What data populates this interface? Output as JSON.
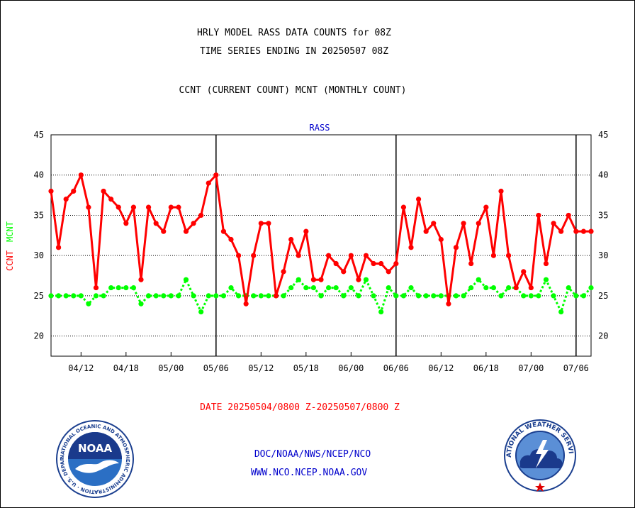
{
  "header": {
    "title_line1": "HRLY MODEL RASS DATA COUNTS for 08Z",
    "title_line2": "TIME SERIES ENDING IN 20250507 08Z",
    "subtitle": "CCNT (CURRENT COUNT) MCNT (MONTHLY COUNT)"
  },
  "chart_data": {
    "type": "line",
    "title": "RASS",
    "ylabel": "CCNT  MCNT",
    "xlabel": "DATE 20250504/0800 Z-20250507/0800 Z",
    "ylim": [
      17.5,
      45
    ],
    "yticks": [
      20,
      25,
      30,
      35,
      40,
      45
    ],
    "grid": true,
    "xtick_labels": [
      "04/12",
      "04/18",
      "05/00",
      "05/06",
      "05/12",
      "05/18",
      "06/00",
      "06/06",
      "06/12",
      "06/18",
      "07/00",
      "07/06"
    ],
    "xtick_positions": [
      4,
      10,
      16,
      22,
      28,
      34,
      40,
      46,
      52,
      58,
      64,
      70
    ],
    "day_boundaries": [
      22,
      46,
      70
    ],
    "x_range": [
      0,
      72
    ],
    "colors": {
      "ccnt": "#ff0000",
      "mcnt": "#00ff00",
      "title": "#0000cc"
    },
    "series": [
      {
        "name": "CCNT",
        "values": [
          38,
          31,
          37,
          38,
          40,
          36,
          26,
          38,
          37,
          36,
          34,
          36,
          27,
          36,
          34,
          33,
          36,
          36,
          33,
          34,
          35,
          39,
          40,
          33,
          32,
          30,
          24,
          30,
          34,
          34,
          25,
          28,
          32,
          30,
          33,
          27,
          27,
          30,
          29,
          28,
          30,
          27,
          30,
          29,
          29,
          28,
          29,
          36,
          31,
          37,
          33,
          34,
          32,
          24,
          31,
          34,
          29,
          34,
          36,
          30,
          38,
          30,
          26,
          28,
          26,
          35,
          29,
          34,
          33,
          35,
          33,
          33,
          33
        ]
      },
      {
        "name": "MCNT",
        "values": [
          25,
          25,
          25,
          25,
          25,
          24,
          25,
          25,
          26,
          26,
          26,
          26,
          24,
          25,
          25,
          25,
          25,
          25,
          27,
          25,
          23,
          25,
          25,
          25,
          26,
          25,
          25,
          25,
          25,
          25,
          25,
          25,
          26,
          27,
          26,
          26,
          25,
          26,
          26,
          25,
          26,
          25,
          27,
          25,
          23,
          26,
          25,
          25,
          26,
          25,
          25,
          25,
          25,
          25,
          25,
          25,
          26,
          27,
          26,
          26,
          25,
          26,
          26,
          25,
          25,
          25,
          27,
          25,
          23,
          26,
          25,
          25,
          26
        ]
      }
    ]
  },
  "footer": {
    "line1": "DOC/NOAA/NWS/NCEP/NCO",
    "line2": "WWW.NCO.NCEP.NOAA.GOV"
  },
  "logos": {
    "noaa_text": "NOAA",
    "noaa_ring": "NATIONAL OCEANIC AND ATMOSPHERIC ADMINISTRATION · U.S. DEPARTMENT OF COMMERCE ·",
    "nws_ring": "NATIONAL WEATHER SERVICE"
  }
}
